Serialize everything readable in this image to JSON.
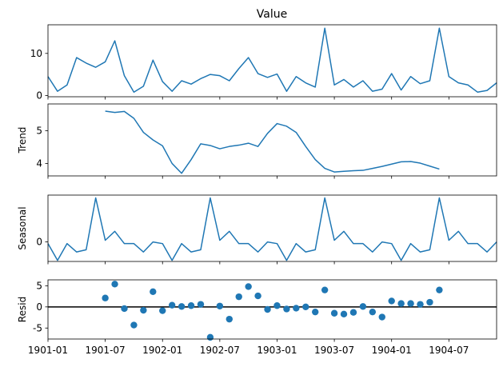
{
  "chart_data": [
    {
      "type": "line",
      "id": "value",
      "title": "Value",
      "ylabel": "",
      "ylim": [
        -0.3,
        16.8
      ],
      "yticks": [
        0,
        10
      ],
      "x": [
        "1901-01",
        "1901-02",
        "1901-03",
        "1901-04",
        "1901-05",
        "1901-06",
        "1901-07",
        "1901-08",
        "1901-09",
        "1901-10",
        "1901-11",
        "1901-12",
        "1902-01",
        "1902-02",
        "1902-03",
        "1902-04",
        "1902-05",
        "1902-06",
        "1902-07",
        "1902-08",
        "1902-09",
        "1902-10",
        "1902-11",
        "1902-12",
        "1903-01",
        "1903-02",
        "1903-03",
        "1903-04",
        "1903-05",
        "1903-06",
        "1903-07",
        "1903-08",
        "1903-09",
        "1903-10",
        "1903-11",
        "1903-12",
        "1904-01",
        "1904-02",
        "1904-03",
        "1904-04",
        "1904-05",
        "1904-06",
        "1904-07",
        "1904-08",
        "1904-09",
        "1904-10",
        "1904-11",
        "1904-12"
      ],
      "values": [
        4.5,
        1.0,
        2.5,
        9.0,
        7.7,
        6.7,
        8.0,
        13.0,
        4.7,
        0.8,
        2.2,
        8.4,
        3.3,
        1.0,
        3.5,
        2.7,
        4.0,
        5.0,
        4.7,
        3.5,
        6.4,
        9.0,
        5.2,
        4.3,
        5.1,
        1.0,
        4.5,
        3.0,
        2.0,
        16.0,
        2.5,
        3.8,
        2.0,
        3.5,
        1.0,
        1.5,
        5.2,
        1.3,
        4.5,
        2.8,
        3.5,
        16.0,
        4.5,
        3.0,
        2.5,
        0.8,
        1.2,
        3.0
      ]
    },
    {
      "type": "line",
      "id": "trend",
      "title": "",
      "ylabel": "Trend",
      "ylim": [
        3.62,
        5.82
      ],
      "yticks": [
        4,
        5
      ],
      "x": [
        "1901-07",
        "1901-08",
        "1901-09",
        "1901-10",
        "1901-11",
        "1901-12",
        "1902-01",
        "1902-02",
        "1902-03",
        "1902-04",
        "1902-05",
        "1902-06",
        "1902-07",
        "1902-08",
        "1902-09",
        "1902-10",
        "1902-11",
        "1902-12",
        "1903-01",
        "1903-02",
        "1903-03",
        "1903-04",
        "1903-05",
        "1903-06",
        "1903-07",
        "1903-08",
        "1903-09",
        "1903-10",
        "1903-11",
        "1903-12",
        "1904-01",
        "1904-02",
        "1904-03",
        "1904-04",
        "1904-05",
        "1904-06"
      ],
      "values": [
        5.6,
        5.56,
        5.59,
        5.38,
        4.95,
        4.72,
        4.54,
        4.0,
        3.7,
        4.12,
        4.6,
        4.55,
        4.45,
        4.52,
        4.56,
        4.62,
        4.52,
        4.92,
        5.22,
        5.14,
        4.95,
        4.52,
        4.12,
        3.85,
        3.74,
        3.76,
        3.78,
        3.79,
        3.85,
        3.91,
        3.98,
        4.05,
        4.06,
        4.01,
        3.92,
        3.83
      ]
    },
    {
      "type": "line",
      "id": "seasonal",
      "title": "",
      "ylabel": "Seasonal",
      "ylim": [
        -3.5,
        8.4
      ],
      "yticks": [
        0
      ],
      "x": [
        "1901-01",
        "1901-02",
        "1901-03",
        "1901-04",
        "1901-05",
        "1901-06",
        "1901-07",
        "1901-08",
        "1901-09",
        "1901-10",
        "1901-11",
        "1901-12",
        "1902-01",
        "1902-02",
        "1902-03",
        "1902-04",
        "1902-05",
        "1902-06",
        "1902-07",
        "1902-08",
        "1902-09",
        "1902-10",
        "1902-11",
        "1902-12",
        "1903-01",
        "1903-02",
        "1903-03",
        "1903-04",
        "1903-05",
        "1903-06",
        "1903-07",
        "1903-08",
        "1903-09",
        "1903-10",
        "1903-11",
        "1903-12",
        "1904-01",
        "1904-02",
        "1904-03",
        "1904-04",
        "1904-05",
        "1904-06",
        "1904-07",
        "1904-08",
        "1904-09",
        "1904-10",
        "1904-11",
        "1904-12"
      ],
      "values": [
        -0.3,
        -3.3,
        -0.3,
        -1.8,
        -1.4,
        7.9,
        0.3,
        1.9,
        -0.3,
        -0.3,
        -1.8,
        0.0,
        -0.3,
        -3.3,
        -0.3,
        -1.8,
        -1.4,
        7.9,
        0.3,
        1.9,
        -0.3,
        -0.3,
        -1.8,
        0.0,
        -0.3,
        -3.3,
        -0.3,
        -1.8,
        -1.4,
        7.9,
        0.3,
        1.9,
        -0.3,
        -0.3,
        -1.8,
        0.0,
        -0.3,
        -3.3,
        -0.3,
        -1.8,
        -1.4,
        7.9,
        0.3,
        1.9,
        -0.3,
        -0.3,
        -1.8,
        0.0
      ]
    },
    {
      "type": "scatter",
      "id": "resid",
      "title": "",
      "ylabel": "Resid",
      "ylim": [
        -7.6,
        6.4
      ],
      "yticks": [
        -5,
        0,
        5
      ],
      "zero_line": true,
      "x": [
        "1901-07",
        "1901-08",
        "1901-09",
        "1901-10",
        "1901-11",
        "1901-12",
        "1902-01",
        "1902-02",
        "1902-03",
        "1902-04",
        "1902-05",
        "1902-06",
        "1902-07",
        "1902-08",
        "1902-09",
        "1902-10",
        "1902-11",
        "1902-12",
        "1903-01",
        "1903-02",
        "1903-03",
        "1903-04",
        "1903-05",
        "1903-06",
        "1903-07",
        "1903-08",
        "1903-09",
        "1903-10",
        "1903-11",
        "1903-12",
        "1904-01",
        "1904-02",
        "1904-03",
        "1904-04",
        "1904-05",
        "1904-06"
      ],
      "values": [
        2.1,
        5.4,
        -0.4,
        -4.3,
        -0.8,
        3.6,
        -0.9,
        0.4,
        0.1,
        0.3,
        0.6,
        -7.2,
        0.2,
        -2.9,
        2.4,
        4.8,
        2.6,
        -0.6,
        0.3,
        -0.5,
        -0.3,
        0.0,
        -1.2,
        4.0,
        -1.5,
        -1.7,
        -1.3,
        0.1,
        -1.2,
        -2.4,
        1.4,
        0.8,
        0.8,
        0.6,
        1.1,
        4.0
      ]
    }
  ],
  "x_axis": {
    "xlim": [
      "1901-01",
      "1904-12"
    ],
    "ticks": [
      "1901-01",
      "1901-07",
      "1902-01",
      "1902-07",
      "1903-01",
      "1903-07",
      "1904-01",
      "1904-07"
    ]
  }
}
